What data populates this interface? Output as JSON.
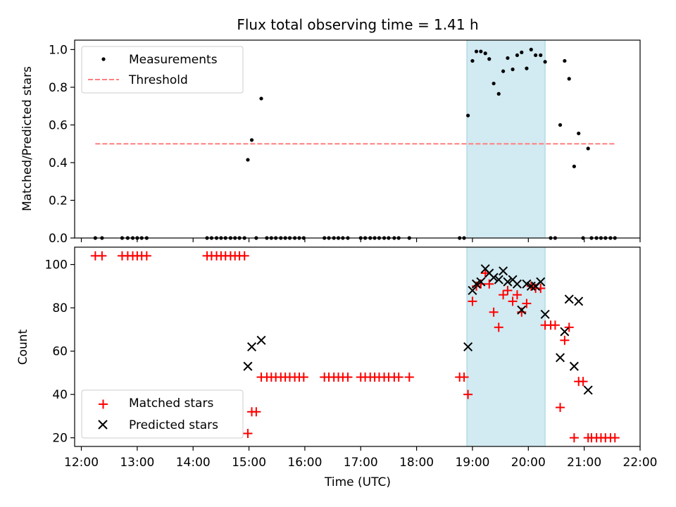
{
  "title": "Flux total observing time = 1.41 h",
  "chart_data": [
    {
      "type": "scatter",
      "ylabel": "Matched/Predicted stars",
      "xlabel": "",
      "xlim": [
        11.88,
        22.0
      ],
      "ylim": [
        0,
        1.05
      ],
      "yticks": [
        0.0,
        0.2,
        0.4,
        0.6,
        0.8,
        1.0
      ],
      "ytick_labels": [
        "0.0",
        "0.2",
        "0.4",
        "0.6",
        "0.8",
        "1.0"
      ],
      "grid": false,
      "legend_position": "upper-left",
      "shaded_interval": [
        18.9,
        20.3
      ],
      "shade_color": "#add8e6",
      "series": [
        {
          "name": "Measurements",
          "marker": "dot",
          "color": "#000000",
          "points": [
            [
              12.25,
              0
            ],
            [
              12.37,
              0
            ],
            [
              12.73,
              0
            ],
            [
              12.83,
              0
            ],
            [
              12.92,
              0
            ],
            [
              13.0,
              0
            ],
            [
              13.08,
              0
            ],
            [
              13.17,
              0
            ],
            [
              14.25,
              0
            ],
            [
              14.33,
              0
            ],
            [
              14.42,
              0
            ],
            [
              14.5,
              0
            ],
            [
              14.58,
              0
            ],
            [
              14.67,
              0
            ],
            [
              14.75,
              0
            ],
            [
              14.83,
              0
            ],
            [
              14.92,
              0
            ],
            [
              14.98,
              0.415
            ],
            [
              15.05,
              0.52
            ],
            [
              15.13,
              0
            ],
            [
              15.22,
              0.74
            ],
            [
              15.32,
              0
            ],
            [
              15.4,
              0
            ],
            [
              15.48,
              0
            ],
            [
              15.57,
              0
            ],
            [
              15.65,
              0
            ],
            [
              15.73,
              0
            ],
            [
              15.82,
              0
            ],
            [
              15.9,
              0
            ],
            [
              15.98,
              0
            ],
            [
              16.35,
              0
            ],
            [
              16.43,
              0
            ],
            [
              16.52,
              0
            ],
            [
              16.6,
              0
            ],
            [
              16.68,
              0
            ],
            [
              16.77,
              0
            ],
            [
              17.0,
              0
            ],
            [
              17.08,
              0
            ],
            [
              17.17,
              0
            ],
            [
              17.25,
              0
            ],
            [
              17.33,
              0
            ],
            [
              17.42,
              0
            ],
            [
              17.5,
              0
            ],
            [
              17.6,
              0
            ],
            [
              17.68,
              0
            ],
            [
              17.87,
              0
            ],
            [
              18.77,
              0
            ],
            [
              18.85,
              0
            ],
            [
              18.92,
              0.65
            ],
            [
              19.0,
              0.94
            ],
            [
              19.07,
              0.99
            ],
            [
              19.15,
              0.99
            ],
            [
              19.23,
              0.98
            ],
            [
              19.3,
              0.95
            ],
            [
              19.38,
              0.82
            ],
            [
              19.47,
              0.765
            ],
            [
              19.55,
              0.885
            ],
            [
              19.63,
              0.955
            ],
            [
              19.72,
              0.895
            ],
            [
              19.8,
              0.97
            ],
            [
              19.88,
              0.985
            ],
            [
              19.97,
              0.9
            ],
            [
              20.05,
              1.0
            ],
            [
              20.13,
              0.97
            ],
            [
              20.22,
              0.97
            ],
            [
              20.3,
              0.935
            ],
            [
              20.4,
              0
            ],
            [
              20.48,
              0
            ],
            [
              20.57,
              0.6
            ],
            [
              20.65,
              0.94
            ],
            [
              20.73,
              0.845
            ],
            [
              20.82,
              0.38
            ],
            [
              20.9,
              0.555
            ],
            [
              20.98,
              0
            ],
            [
              21.07,
              0.475
            ],
            [
              21.13,
              0
            ],
            [
              21.22,
              0
            ],
            [
              21.3,
              0
            ],
            [
              21.38,
              0
            ],
            [
              21.47,
              0
            ],
            [
              21.55,
              0
            ]
          ]
        },
        {
          "name": "Threshold",
          "marker": "dashed-line",
          "color": "#ff7f7f",
          "points": [
            [
              12.25,
              0.5
            ],
            [
              21.57,
              0.5
            ]
          ]
        }
      ]
    },
    {
      "type": "scatter",
      "xlabel": "Time (UTC)",
      "ylabel": "Count",
      "xlim": [
        11.88,
        22.0
      ],
      "ylim": [
        16,
        108
      ],
      "xticks": [
        12,
        13,
        14,
        15,
        16,
        17,
        18,
        19,
        20,
        21,
        22
      ],
      "xtick_labels": [
        "12:00",
        "13:00",
        "14:00",
        "15:00",
        "16:00",
        "17:00",
        "18:00",
        "19:00",
        "20:00",
        "21:00",
        "22:00"
      ],
      "yticks": [
        20,
        40,
        60,
        80,
        100
      ],
      "ytick_labels": [
        "20",
        "40",
        "60",
        "80",
        "100"
      ],
      "grid": false,
      "legend_position": "lower-left",
      "shaded_interval": [
        18.9,
        20.3
      ],
      "shade_color": "#add8e6",
      "series": [
        {
          "name": "Matched stars",
          "marker": "plus",
          "color": "#ff0000",
          "points": [
            [
              12.25,
              104
            ],
            [
              12.37,
              104
            ],
            [
              12.73,
              104
            ],
            [
              12.83,
              104
            ],
            [
              12.92,
              104
            ],
            [
              13.0,
              104
            ],
            [
              13.08,
              104
            ],
            [
              13.17,
              104
            ],
            [
              14.25,
              104
            ],
            [
              14.33,
              104
            ],
            [
              14.42,
              104
            ],
            [
              14.5,
              104
            ],
            [
              14.58,
              104
            ],
            [
              14.67,
              104
            ],
            [
              14.75,
              104
            ],
            [
              14.83,
              104
            ],
            [
              14.92,
              104
            ],
            [
              14.98,
              22
            ],
            [
              15.05,
              32
            ],
            [
              15.13,
              32
            ],
            [
              15.22,
              48
            ],
            [
              15.32,
              48
            ],
            [
              15.4,
              48
            ],
            [
              15.48,
              48
            ],
            [
              15.57,
              48
            ],
            [
              15.65,
              48
            ],
            [
              15.73,
              48
            ],
            [
              15.82,
              48
            ],
            [
              15.9,
              48
            ],
            [
              15.98,
              48
            ],
            [
              16.35,
              48
            ],
            [
              16.43,
              48
            ],
            [
              16.52,
              48
            ],
            [
              16.6,
              48
            ],
            [
              16.68,
              48
            ],
            [
              16.77,
              48
            ],
            [
              17.0,
              48
            ],
            [
              17.08,
              48
            ],
            [
              17.17,
              48
            ],
            [
              17.25,
              48
            ],
            [
              17.33,
              48
            ],
            [
              17.42,
              48
            ],
            [
              17.5,
              48
            ],
            [
              17.6,
              48
            ],
            [
              17.68,
              48
            ],
            [
              17.87,
              48
            ],
            [
              18.77,
              48
            ],
            [
              18.85,
              48
            ],
            [
              18.92,
              40
            ],
            [
              19.0,
              83
            ],
            [
              19.07,
              90
            ],
            [
              19.15,
              91
            ],
            [
              19.23,
              96
            ],
            [
              19.3,
              91
            ],
            [
              19.38,
              78
            ],
            [
              19.47,
              71
            ],
            [
              19.55,
              86
            ],
            [
              19.63,
              88
            ],
            [
              19.72,
              83
            ],
            [
              19.8,
              86
            ],
            [
              19.88,
              78
            ],
            [
              19.97,
              82
            ],
            [
              20.05,
              90
            ],
            [
              20.13,
              89
            ],
            [
              20.22,
              89
            ],
            [
              20.3,
              72
            ],
            [
              20.4,
              72
            ],
            [
              20.48,
              72
            ],
            [
              20.57,
              34
            ],
            [
              20.65,
              65
            ],
            [
              20.73,
              71
            ],
            [
              20.82,
              20
            ],
            [
              20.9,
              46
            ],
            [
              20.98,
              46
            ],
            [
              21.07,
              20
            ],
            [
              21.13,
              20
            ],
            [
              21.22,
              20
            ],
            [
              21.3,
              20
            ],
            [
              21.38,
              20
            ],
            [
              21.47,
              20
            ],
            [
              21.55,
              20
            ]
          ]
        },
        {
          "name": "Predicted stars",
          "marker": "x",
          "color": "#000000",
          "points": [
            [
              14.98,
              53
            ],
            [
              15.05,
              62
            ],
            [
              15.22,
              65
            ],
            [
              18.92,
              62
            ],
            [
              19.0,
              88
            ],
            [
              19.07,
              91
            ],
            [
              19.15,
              92
            ],
            [
              19.23,
              98
            ],
            [
              19.3,
              96
            ],
            [
              19.38,
              94
            ],
            [
              19.47,
              93
            ],
            [
              19.55,
              97
            ],
            [
              19.63,
              92
            ],
            [
              19.72,
              93
            ],
            [
              19.8,
              91
            ],
            [
              19.88,
              79
            ],
            [
              19.97,
              91
            ],
            [
              20.05,
              90
            ],
            [
              20.13,
              90
            ],
            [
              20.22,
              92
            ],
            [
              20.3,
              77
            ],
            [
              20.57,
              57
            ],
            [
              20.65,
              69
            ],
            [
              20.73,
              84
            ],
            [
              20.82,
              53
            ],
            [
              20.9,
              83
            ],
            [
              21.07,
              42
            ]
          ]
        }
      ]
    }
  ]
}
